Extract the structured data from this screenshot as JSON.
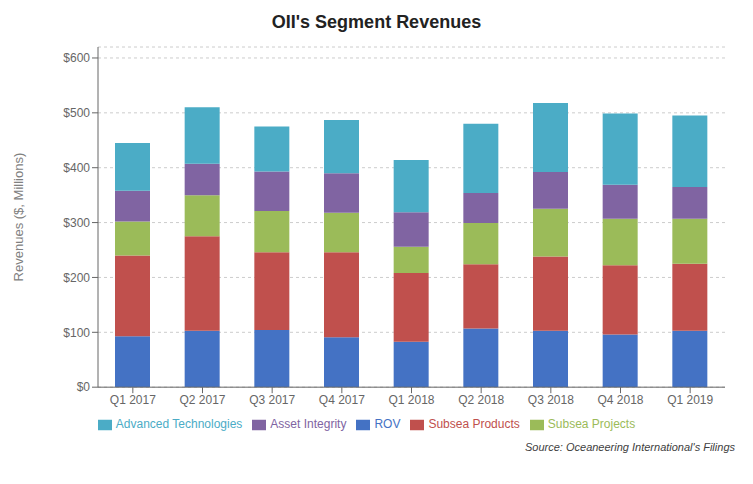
{
  "chart_data": {
    "type": "bar",
    "stacked": true,
    "title": "OII's Segment Revenues",
    "y_label": "Revenues ($, Millions)",
    "annotations": [
      "Source: Oceaneering International's Filings"
    ],
    "categories": [
      "Q1 2017",
      "Q2 2017",
      "Q3 2017",
      "Q4 2017",
      "Q1 2018",
      "Q2 2018",
      "Q3 2018",
      "Q4 2018",
      "Q1 2019"
    ],
    "series": [
      {
        "name": "ROV",
        "color": "#4472C4",
        "values": [
          93,
          103,
          104,
          91,
          83,
          107,
          103,
          96,
          103
        ]
      },
      {
        "name": "Subsea Products",
        "color": "#C0504D",
        "values": [
          147,
          172,
          142,
          155,
          125,
          117,
          135,
          126,
          122
        ]
      },
      {
        "name": "Subsea Projects",
        "color": "#9BBB59",
        "values": [
          62,
          75,
          75,
          72,
          48,
          75,
          87,
          85,
          82
        ]
      },
      {
        "name": "Asset Integrity",
        "color": "#8064A2",
        "values": [
          56,
          57,
          72,
          72,
          63,
          55,
          67,
          62,
          58
        ]
      },
      {
        "name": "Advanced Technologies",
        "color": "#4BACC6",
        "values": [
          87,
          103,
          82,
          97,
          95,
          126,
          126,
          130,
          130
        ]
      }
    ],
    "ylim": [
      0,
      620
    ],
    "yticks": [
      {
        "value": 0,
        "label": "$0"
      },
      {
        "value": 100,
        "label": "$100"
      },
      {
        "value": 200,
        "label": "$200"
      },
      {
        "value": 300,
        "label": "$300"
      },
      {
        "value": 400,
        "label": "$400"
      },
      {
        "value": 500,
        "label": "$500"
      },
      {
        "value": 600,
        "label": "$600"
      }
    ],
    "grid": true,
    "legend": "bottom"
  }
}
